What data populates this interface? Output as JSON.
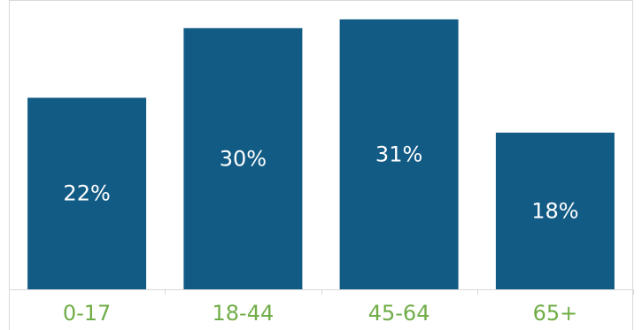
{
  "chart_data": {
    "type": "bar",
    "categories": [
      "0-17",
      "18-44",
      "45-64",
      "65+"
    ],
    "values": [
      22,
      30,
      31,
      18
    ],
    "value_labels": [
      "22%",
      "30%",
      "31%",
      "18%"
    ],
    "title": "",
    "xlabel": "",
    "ylabel": "",
    "ylim": [
      0,
      31.5
    ],
    "grid": false,
    "legend": "none",
    "colors": {
      "bar": "#125b85",
      "value_label": "#ffffff",
      "tick_label": "#70ad47",
      "axis": "#d9d9d9",
      "frame": "#d9d9d9"
    }
  }
}
